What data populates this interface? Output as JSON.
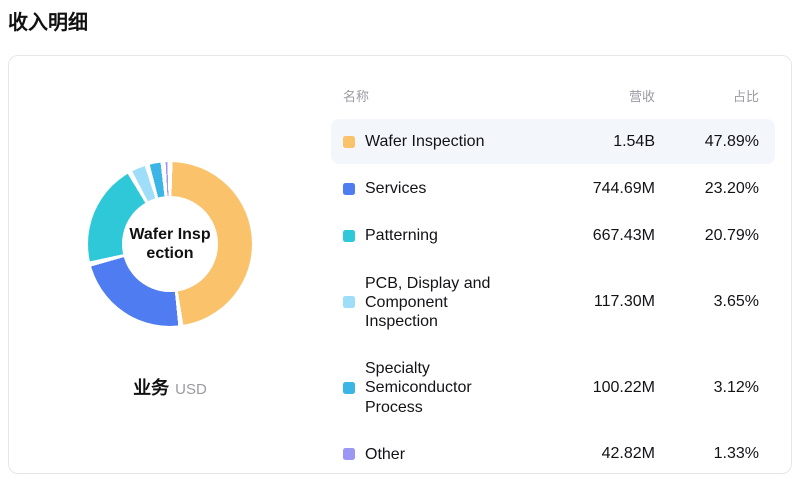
{
  "page": {
    "title": "收入明细"
  },
  "chart_data": {
    "type": "pie",
    "subtype": "donut",
    "title": "收入明细",
    "center_label": "Wafer Inspection",
    "center_label_lines": [
      "Wafer Insp",
      "ection"
    ],
    "caption": "业务",
    "unit": "USD",
    "start_angle_deg": 0,
    "direction": "clockwise",
    "headers": {
      "name": "名称",
      "revenue": "营收",
      "share": "占比"
    },
    "rows": [
      {
        "name": "Wafer Inspection",
        "revenue": "1.54B",
        "share": "47.89%",
        "share_pct": 47.89,
        "color": "#FAC36B",
        "highlighted": true
      },
      {
        "name": "Services",
        "revenue": "744.69M",
        "share": "23.20%",
        "share_pct": 23.2,
        "color": "#4F7CF0",
        "highlighted": false
      },
      {
        "name": "Patterning",
        "revenue": "667.43M",
        "share": "20.79%",
        "share_pct": 20.79,
        "color": "#2EC8D9",
        "highlighted": false
      },
      {
        "name": "PCB, Display and\nComponent Inspection",
        "revenue": "117.30M",
        "share": "3.65%",
        "share_pct": 3.65,
        "color": "#9FDEF9",
        "highlighted": false
      },
      {
        "name": "Specialty\nSemiconductor Process",
        "revenue": "100.22M",
        "share": "3.12%",
        "share_pct": 3.12,
        "color": "#3BB4E6",
        "highlighted": false
      },
      {
        "name": "Other",
        "revenue": "42.82M",
        "share": "1.33%",
        "share_pct": 1.33,
        "color": "#9B97F5",
        "highlighted": false
      }
    ]
  }
}
